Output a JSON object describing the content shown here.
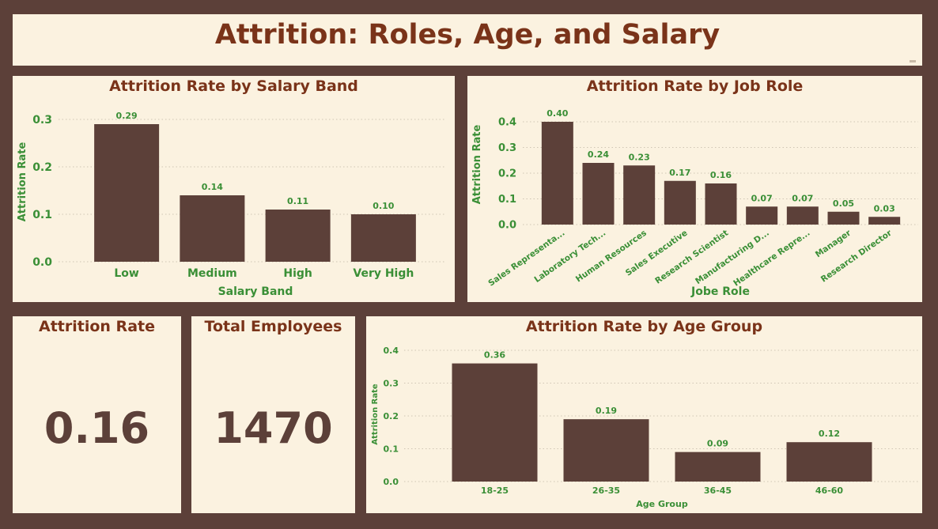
{
  "dashboard": {
    "title": "Attrition: Roles, Age, and Salary"
  },
  "kpis": {
    "attrition_rate": {
      "label": "Attrition Rate",
      "value": "0.16"
    },
    "total_employees": {
      "label": "Total Employees",
      "value": "1470"
    }
  },
  "colors": {
    "background": "#5c4039",
    "panel": "#fbf2e0",
    "bar": "#5c4039",
    "title": "#7a3319",
    "axis_text": "#3a8f36"
  },
  "chart_data": [
    {
      "type": "bar",
      "title": "Attrition Rate by Salary Band",
      "xlabel": "Salary Band",
      "ylabel": "Attrition Rate",
      "categories": [
        "Low",
        "Medium",
        "High",
        "Very High"
      ],
      "values": [
        0.29,
        0.14,
        0.11,
        0.1
      ],
      "data_labels": [
        "0.29",
        "0.14",
        "0.11",
        "0.10"
      ],
      "yticks": [
        "0.0",
        "0.1",
        "0.2",
        "0.3"
      ],
      "ylim": [
        0,
        0.3
      ],
      "grid": true
    },
    {
      "type": "bar",
      "title": "Attrition Rate by Job Role",
      "xlabel": "Jobe Role",
      "ylabel": "Attrition Rate",
      "categories": [
        "Sales Representa...",
        "Laboratory Tech...",
        "Human Resources",
        "Sales Executive",
        "Research Scientist",
        "Manufacturing D...",
        "Healthcare Repre...",
        "Manager",
        "Research Director"
      ],
      "values": [
        0.4,
        0.24,
        0.23,
        0.17,
        0.16,
        0.07,
        0.07,
        0.05,
        0.03
      ],
      "data_labels": [
        "0.40",
        "0.24",
        "0.23",
        "0.17",
        "0.16",
        "0.07",
        "0.07",
        "0.05",
        "0.03"
      ],
      "yticks": [
        "0.0",
        "0.1",
        "0.2",
        "0.3",
        "0.4"
      ],
      "ylim": [
        0,
        0.4
      ],
      "grid": true
    },
    {
      "type": "bar",
      "title": "Attrition Rate by Age Group",
      "xlabel": "Age Group",
      "ylabel": "Attrition Rate",
      "categories": [
        "18-25",
        "26-35",
        "36-45",
        "46-60"
      ],
      "values": [
        0.36,
        0.19,
        0.09,
        0.12
      ],
      "data_labels": [
        "0.36",
        "0.19",
        "0.09",
        "0.12"
      ],
      "yticks": [
        "0.0",
        "0.1",
        "0.2",
        "0.3",
        "0.4"
      ],
      "ylim": [
        0,
        0.4
      ],
      "grid": true
    }
  ]
}
